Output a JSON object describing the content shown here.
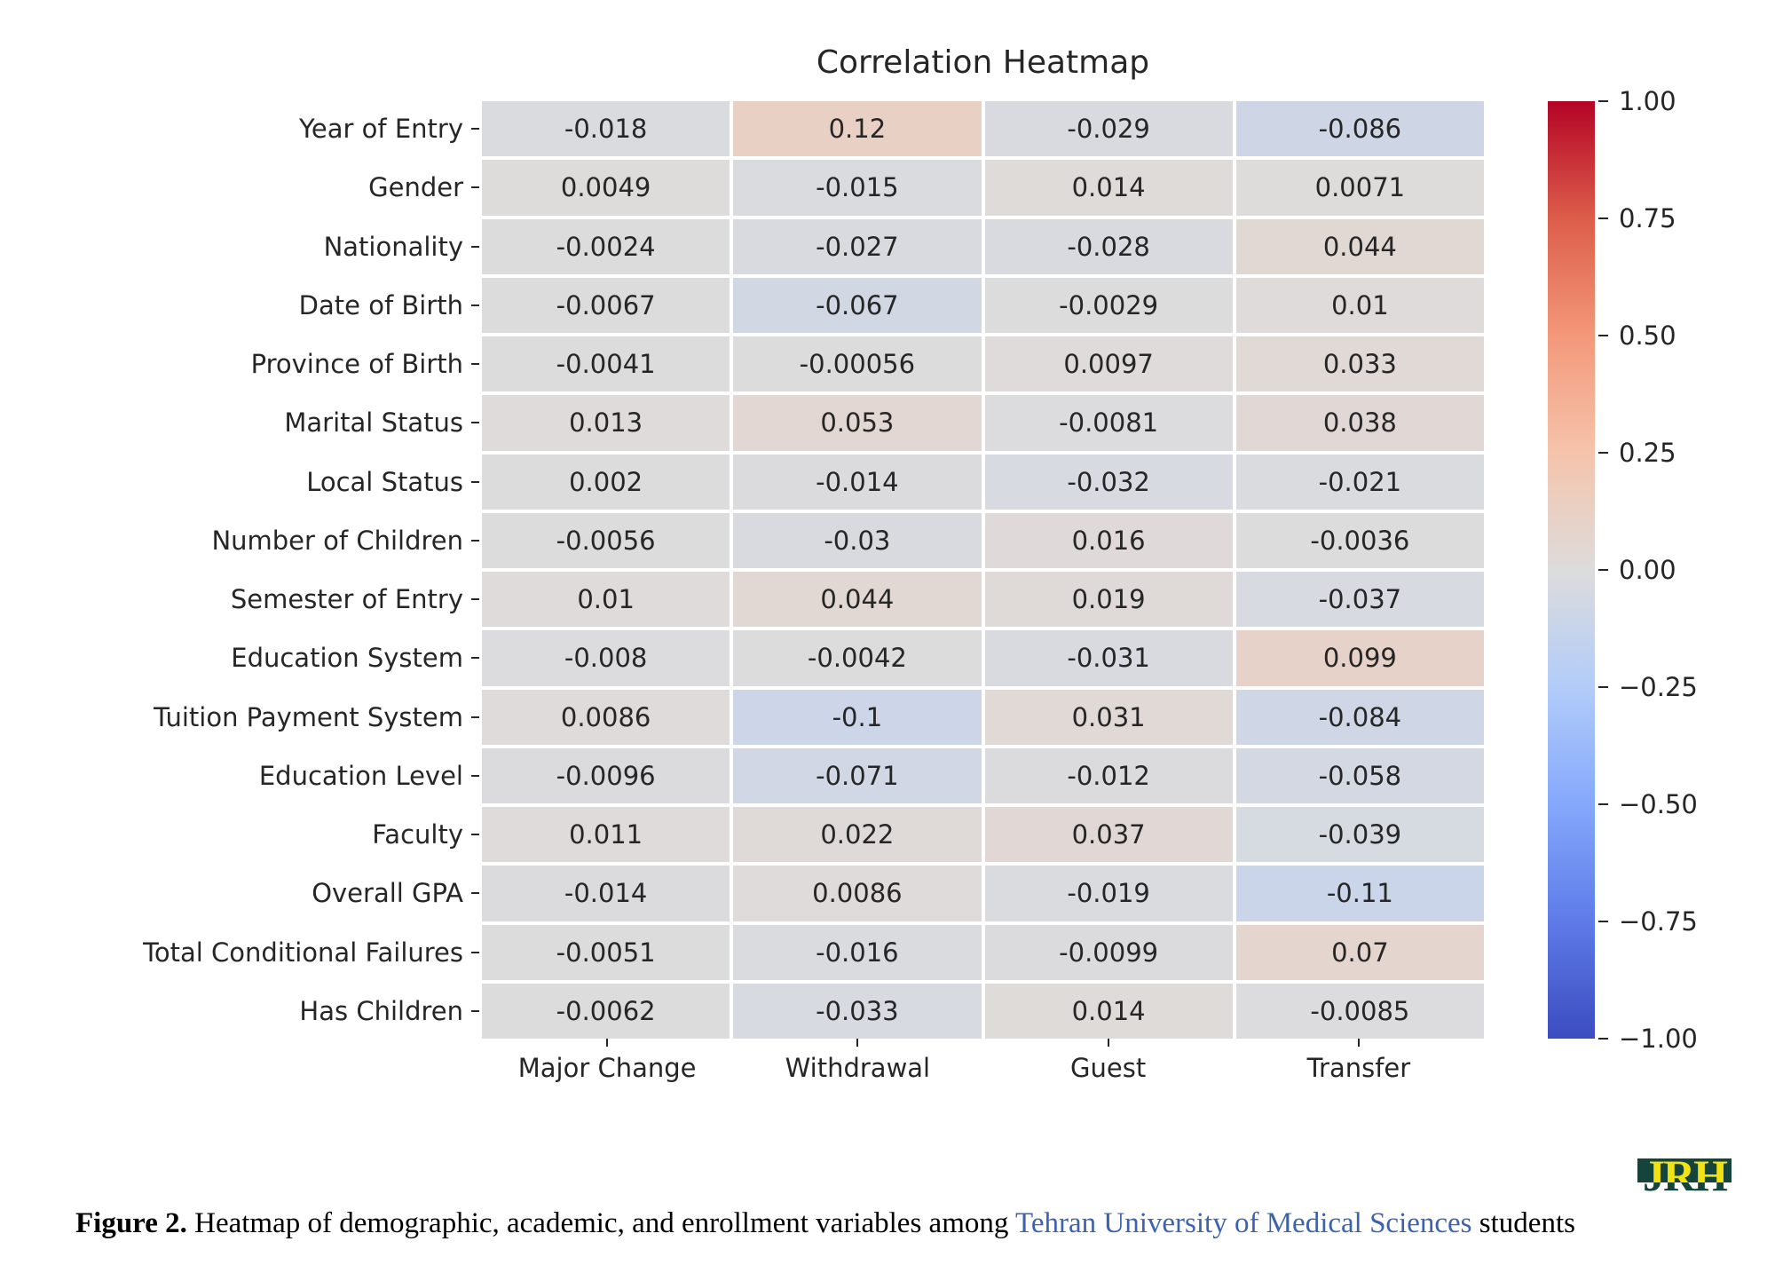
{
  "chart_data": {
    "type": "heatmap",
    "title": "Correlation Heatmap",
    "columns": [
      "Major Change",
      "Withdrawal",
      "Guest",
      "Transfer"
    ],
    "rows": [
      "Year of Entry",
      "Gender",
      "Nationality",
      "Date of Birth",
      "Province of Birth",
      "Marital Status",
      "Local Status",
      "Number of Children",
      "Semester of Entry",
      "Education System",
      "Tuition Payment System",
      "Education Level",
      "Faculty",
      "Overall GPA",
      "Total Conditional Failures",
      "Has Children"
    ],
    "cells": [
      [
        "-0.018",
        "0.12",
        "-0.029",
        "-0.086"
      ],
      [
        "0.0049",
        "-0.015",
        "0.014",
        "0.0071"
      ],
      [
        "-0.0024",
        "-0.027",
        "-0.028",
        "0.044"
      ],
      [
        "-0.0067",
        "-0.067",
        "-0.0029",
        "0.01"
      ],
      [
        "-0.0041",
        "-0.00056",
        "0.0097",
        "0.033"
      ],
      [
        "0.013",
        "0.053",
        "-0.0081",
        "0.038"
      ],
      [
        "0.002",
        "-0.014",
        "-0.032",
        "-0.021"
      ],
      [
        "-0.0056",
        "-0.03",
        "0.016",
        "-0.0036"
      ],
      [
        "0.01",
        "0.044",
        "0.019",
        "-0.037"
      ],
      [
        "-0.008",
        "-0.0042",
        "-0.031",
        "0.099"
      ],
      [
        "0.0086",
        "-0.1",
        "0.031",
        "-0.084"
      ],
      [
        "-0.0096",
        "-0.071",
        "-0.012",
        "-0.058"
      ],
      [
        "0.011",
        "0.022",
        "0.037",
        "-0.039"
      ],
      [
        "-0.014",
        "0.0086",
        "-0.019",
        "-0.11"
      ],
      [
        "-0.0051",
        "-0.016",
        "-0.0099",
        "0.07"
      ],
      [
        "-0.0062",
        "-0.033",
        "0.014",
        "-0.0085"
      ]
    ],
    "vmin": -1,
    "vmax": 1,
    "colormap": "coolwarm",
    "colormap_anchors": [
      [
        0.0,
        "#3B4CC0"
      ],
      [
        0.125,
        "#5E7BE8"
      ],
      [
        0.25,
        "#85A8FC"
      ],
      [
        0.375,
        "#B2CCF9"
      ],
      [
        0.5,
        "#DDDCDC"
      ],
      [
        0.625,
        "#F5C4AC"
      ],
      [
        0.75,
        "#F4987A"
      ],
      [
        0.875,
        "#DC5D4A"
      ],
      [
        1.0,
        "#B40426"
      ]
    ],
    "colorbar_ticks": [
      "1.00",
      "0.75",
      "0.50",
      "0.25",
      "0.00",
      "−0.25",
      "−0.50",
      "−0.75",
      "−1.00"
    ],
    "legend_position": "right",
    "grid": false,
    "text_color": "#262626"
  },
  "caption": {
    "label": "Figure 2.",
    "before_link": " Heatmap of demographic, academic, and enrollment variables among ",
    "link_text": "Tehran University of Medical Sciences",
    "after_link": " students",
    "link_color": "#3E63AE"
  },
  "logo": {
    "text": "JRH",
    "bg_color": "#14443B",
    "letter_color_top": "#F2E113",
    "letter_color_bottom": "#14443B"
  }
}
